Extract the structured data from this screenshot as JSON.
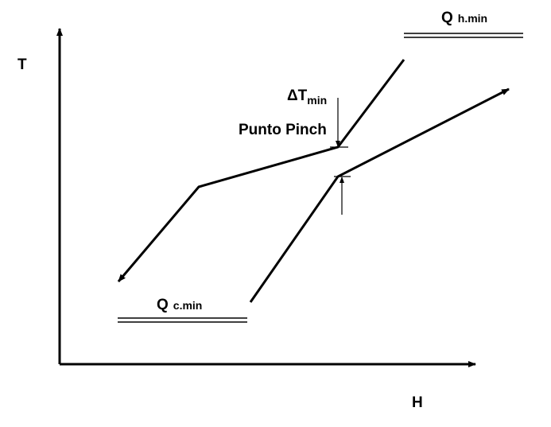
{
  "axes": {
    "y_label": "T",
    "x_label": "H"
  },
  "labels": {
    "q_hot": {
      "symbol": "Q",
      "subscript": "h.min"
    },
    "delta_t": {
      "symbol": "ΔT",
      "subscript": "min"
    },
    "pinch": "Punto Pinch",
    "q_cold": {
      "symbol": "Q",
      "subscript": "c.min"
    }
  }
}
